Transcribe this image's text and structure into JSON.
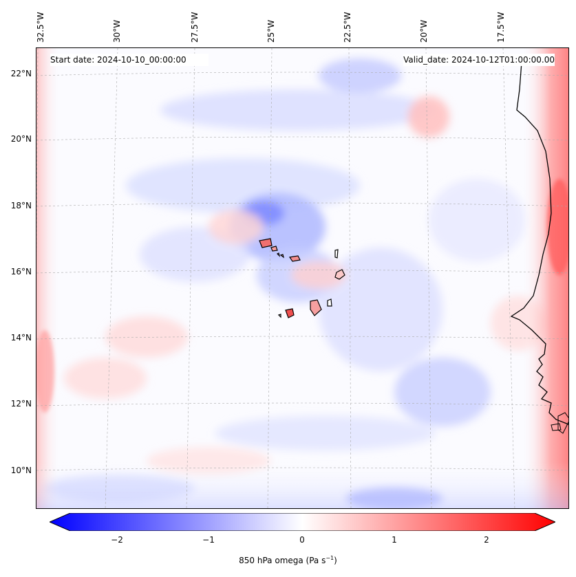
{
  "header": {
    "start_date": "Start date: 2024-10-10_00:00:00",
    "valid_date": "Valid_date: 2024-10-12T01:00:00.00"
  },
  "axes": {
    "lat_labels": [
      "22°N",
      "20°N",
      "18°N",
      "16°N",
      "14°N",
      "12°N",
      "10°N"
    ],
    "lon_labels": [
      "32.5°W",
      "30°W",
      "27.5°W",
      "25°W",
      "22.5°W",
      "20°W",
      "17.5°W"
    ]
  },
  "colorbar": {
    "ticks": [
      "−2",
      "−1",
      "0",
      "1",
      "2"
    ],
    "label": "850 hPa omega (Pa s",
    "label_sup": "−1",
    "label_end": ")",
    "range": [
      -2.6,
      2.6
    ],
    "colors": {
      "neg": "#0000ff",
      "zero": "#ffffff",
      "pos": "#ff0000"
    }
  },
  "map": {
    "projection": "lambert",
    "coastline_color": "#000000",
    "gridlines": true
  }
}
